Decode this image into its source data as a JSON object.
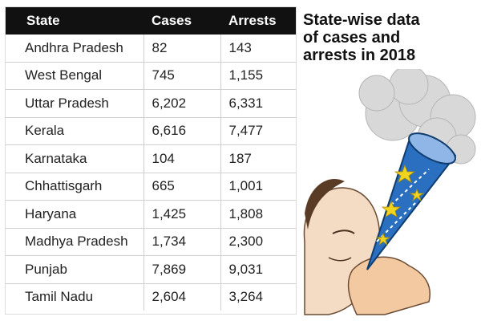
{
  "table": {
    "headers": [
      "State",
      "Cases",
      "Arrests"
    ],
    "rows": [
      {
        "state": "Andhra Pradesh",
        "cases": "82",
        "arrests": "143"
      },
      {
        "state": "West Bengal",
        "cases": "745",
        "arrests": "1,155"
      },
      {
        "state": "Uttar Pradesh",
        "cases": "6,202",
        "arrests": "6,331"
      },
      {
        "state": "Kerala",
        "cases": "6,616",
        "arrests": "7,477"
      },
      {
        "state": "Karnataka",
        "cases": "104",
        "arrests": "187"
      },
      {
        "state": "Chhattisgarh",
        "cases": "665",
        "arrests": "1,001"
      },
      {
        "state": "Haryana",
        "cases": "1,425",
        "arrests": "1,808"
      },
      {
        "state": "Madhya Pradesh",
        "cases": "1,734",
        "arrests": "2,300"
      },
      {
        "state": "Punjab",
        "cases": "7,869",
        "arrests": "9,031"
      },
      {
        "state": "Tamil Nadu",
        "cases": "2,604",
        "arrests": "3,264"
      }
    ]
  },
  "title_lines": [
    "State-wise data",
    "of cases and",
    "arrests in 2018"
  ],
  "colors": {
    "header_bg": "#111111",
    "header_text": "#ffffff",
    "cone_blue": "#2a6fc0",
    "stars": "#f1d321"
  }
}
